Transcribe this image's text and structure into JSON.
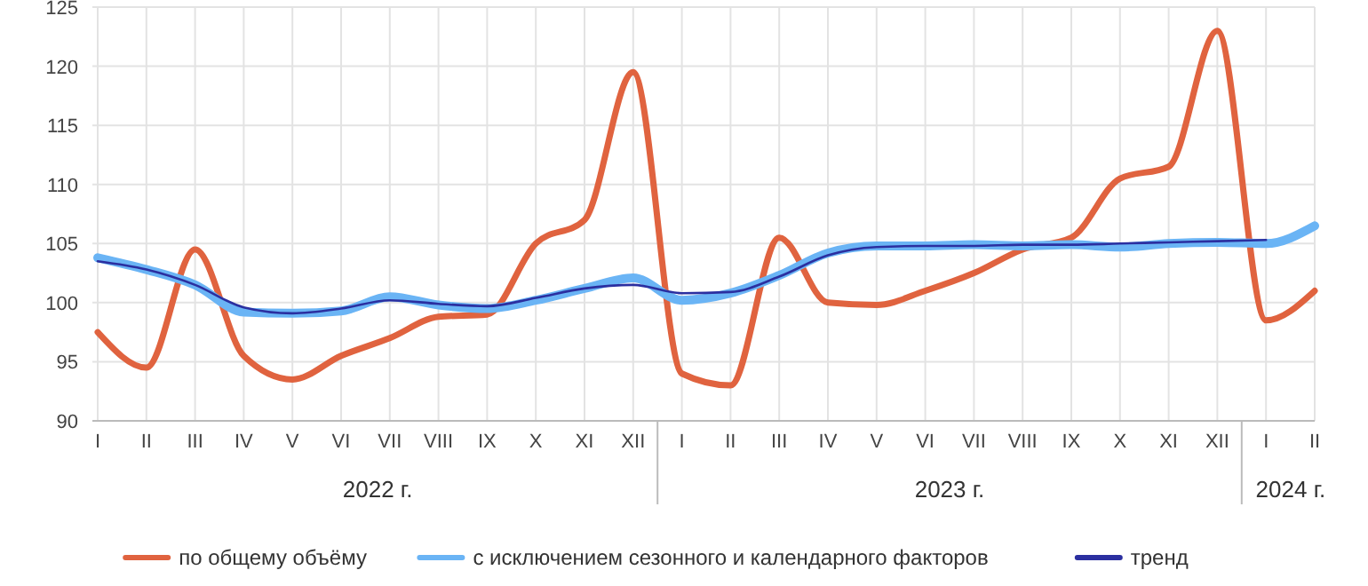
{
  "chart_data": {
    "type": "line",
    "categories": [
      "I",
      "II",
      "III",
      "IV",
      "V",
      "VI",
      "VII",
      "VIII",
      "IX",
      "X",
      "XI",
      "XII",
      "I",
      "II",
      "III",
      "IV",
      "V",
      "VI",
      "VII",
      "VIII",
      "IX",
      "X",
      "XI",
      "XII",
      "I",
      "II"
    ],
    "series": [
      {
        "name": "по общему объёму",
        "color": "#e0633f",
        "values": [
          97.5,
          94.5,
          104.5,
          95.5,
          93.5,
          95.5,
          97,
          98.8,
          99,
          105,
          107,
          119.5,
          94,
          93,
          105.5,
          100,
          99.8,
          101,
          102.5,
          104.5,
          105.5,
          110.5,
          111.5,
          123,
          98.5,
          101
        ]
      },
      {
        "name": "с исключением сезонного и календарного факторов",
        "color": "#6ab4f5",
        "values": [
          103.8,
          102.8,
          101.5,
          99.2,
          99.1,
          99.3,
          100.5,
          99.8,
          99.5,
          100.2,
          101.2,
          102.1,
          100.2,
          100.8,
          102.3,
          104.2,
          104.8,
          104.8,
          104.9,
          104.8,
          104.9,
          104.7,
          105,
          105.1,
          105,
          106.5
        ]
      },
      {
        "name": "тренд",
        "color": "#2b2fa0",
        "values": [
          103.5,
          102.8,
          101.5,
          99.6,
          99.1,
          99.5,
          100.2,
          99.9,
          99.7,
          100.4,
          101.2,
          101.5,
          100.8,
          100.9,
          102.2,
          104,
          104.7,
          104.8,
          104.8,
          104.9,
          104.9,
          105,
          105.1,
          105.2,
          105.3,
          null
        ]
      }
    ],
    "ylim": [
      90,
      125
    ],
    "yticks": [
      90,
      95,
      100,
      105,
      110,
      115,
      120,
      125
    ],
    "grid": true,
    "legend": "bottom",
    "line_style": "solid",
    "annotations": [
      "2022 г.",
      "2023 г.",
      "2024 г."
    ]
  }
}
